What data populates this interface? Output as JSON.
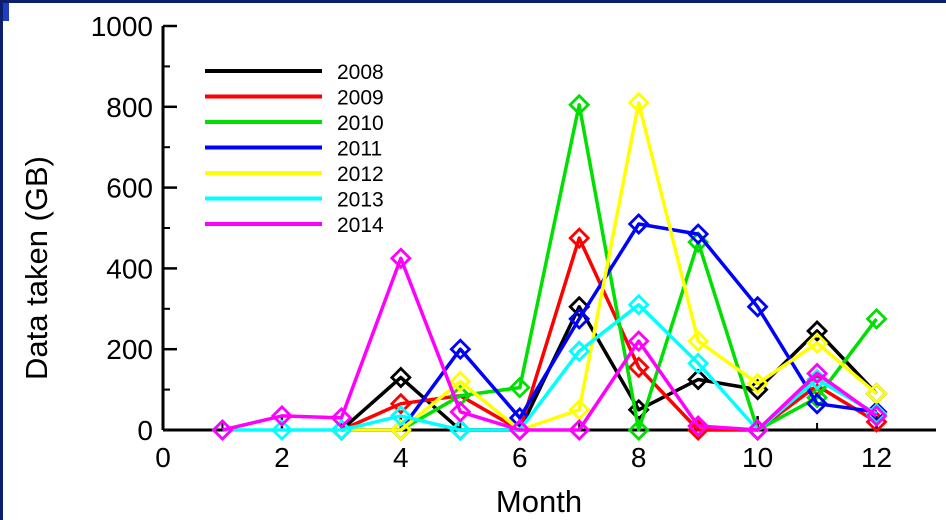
{
  "chart_data": {
    "type": "line",
    "xlabel": "Month",
    "ylabel": "Data taken (GB)",
    "xlim": [
      0,
      13
    ],
    "ylim": [
      0,
      1000
    ],
    "xticks": [
      0,
      2,
      4,
      6,
      8,
      10,
      12
    ],
    "yticks": [
      0,
      200,
      400,
      600,
      800,
      1000
    ],
    "marker": "diamond",
    "legend_position": "top-left",
    "series": [
      {
        "name": "2008",
        "color": "#000000",
        "x": [
          3,
          4,
          5,
          6,
          7,
          8,
          9,
          10,
          11,
          12
        ],
        "y": [
          0,
          130,
          0,
          0,
          305,
          50,
          125,
          100,
          245,
          90
        ]
      },
      {
        "name": "2009",
        "color": "#ff0000",
        "x": [
          3,
          4,
          5,
          6,
          7,
          8,
          9,
          10,
          11,
          12
        ],
        "y": [
          0,
          65,
          85,
          0,
          475,
          155,
          0,
          0,
          110,
          20
        ]
      },
      {
        "name": "2010",
        "color": "#00e000",
        "x": [
          3,
          4,
          5,
          6,
          7,
          8,
          9,
          10,
          11,
          12
        ],
        "y": [
          0,
          0,
          85,
          105,
          805,
          0,
          465,
          0,
          80,
          275
        ]
      },
      {
        "name": "2011",
        "color": "#0000ff",
        "x": [
          3,
          4,
          5,
          6,
          7,
          8,
          9,
          10,
          11,
          12
        ],
        "y": [
          0,
          0,
          200,
          30,
          275,
          510,
          485,
          305,
          65,
          45
        ]
      },
      {
        "name": "2012",
        "color": "#ffff00",
        "x": [
          3,
          4,
          5,
          6,
          7,
          8,
          9,
          10,
          11,
          12
        ],
        "y": [
          0,
          0,
          120,
          0,
          50,
          810,
          220,
          115,
          215,
          90
        ]
      },
      {
        "name": "2013",
        "color": "#00ffff",
        "x": [
          1,
          2,
          3,
          4,
          5,
          6,
          7,
          8,
          9,
          10,
          11,
          12
        ],
        "y": [
          0,
          0,
          0,
          35,
          0,
          0,
          195,
          310,
          165,
          0,
          125,
          40
        ]
      },
      {
        "name": "2014",
        "color": "#ff00ff",
        "x": [
          1,
          2,
          3,
          4,
          5,
          6,
          7,
          8,
          9,
          10,
          11,
          12
        ],
        "y": [
          0,
          35,
          30,
          425,
          45,
          0,
          0,
          220,
          10,
          0,
          140,
          35
        ]
      }
    ]
  }
}
